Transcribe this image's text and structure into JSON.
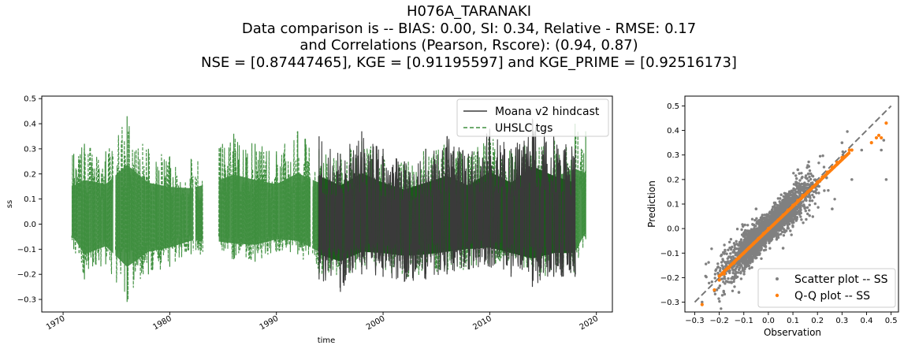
{
  "title": {
    "lines": [
      "H076A_TARANAKI",
      "Data comparison is   --   BIAS: 0.00, SI: 0.34, Relative - RMSE: 0.17",
      "and Correlations (Pearson, Rscore): (0.94, 0.87)",
      "NSE = [0.87447465], KGE = [0.91195597] and KGE_PRIME = [0.92516173]"
    ]
  },
  "colors": {
    "hindcast": "#3a3a3a",
    "hindcast_fill": "#1a5c1a",
    "tgs": "#3f8f3f",
    "tgs_fill": "#4f964f",
    "scatter": "#808080",
    "qq": "#ff7f0e",
    "identity": "#777777"
  },
  "chart_data": [
    {
      "type": "line",
      "xlabel": "time",
      "ylabel": "ss",
      "xlim": [
        1968.0,
        2021.5
      ],
      "ylim": [
        -0.35,
        0.51
      ],
      "x_ticks": [
        {
          "value": 1970,
          "label": "1970"
        },
        {
          "value": 1980,
          "label": "1980"
        },
        {
          "value": 1990,
          "label": "1990"
        },
        {
          "value": 2000,
          "label": "2000"
        },
        {
          "value": 2010,
          "label": "2010"
        },
        {
          "value": 2020,
          "label": "2020"
        }
      ],
      "y_ticks": [
        {
          "value": -0.3,
          "label": "−0.3"
        },
        {
          "value": -0.2,
          "label": "−0.2"
        },
        {
          "value": -0.1,
          "label": "−0.1"
        },
        {
          "value": 0.0,
          "label": "0.0"
        },
        {
          "value": 0.1,
          "label": "0.1"
        },
        {
          "value": 0.2,
          "label": "0.2"
        },
        {
          "value": 0.3,
          "label": "0.3"
        },
        {
          "value": 0.4,
          "label": "0.4"
        },
        {
          "value": 0.5,
          "label": "0.5"
        }
      ],
      "legend": {
        "position": "top-right"
      },
      "series": [
        {
          "name": "Moana v2 hindcast",
          "style": "solid",
          "coverage": [
            [
              1993.9,
              2018.0
            ]
          ],
          "envelope": {
            "x": [
              1994,
              1996,
              1998,
              2000,
              2002,
              2004,
              2006,
              2008,
              2010,
              2012,
              2014,
              2016,
              2018
            ],
            "max": [
              0.35,
              0.28,
              0.37,
              0.3,
              0.25,
              0.3,
              0.35,
              0.28,
              0.38,
              0.3,
              0.42,
              0.35,
              0.3
            ],
            "min": [
              -0.22,
              -0.27,
              -0.2,
              -0.21,
              -0.23,
              -0.22,
              -0.2,
              -0.18,
              -0.17,
              -0.21,
              -0.25,
              -0.21,
              -0.21
            ]
          }
        },
        {
          "name": "UHSLC tgs",
          "style": "dashed",
          "coverage": [
            [
              1970.8,
              1974.7
            ],
            [
              1974.9,
              1982.2
            ],
            [
              1982.4,
              1983.1
            ],
            [
              1984.6,
              1993.2
            ],
            [
              1993.4,
              2019.0
            ]
          ],
          "envelope": {
            "x": [
              1971,
              1972,
              1974,
              1976,
              1978,
              1980,
              1982,
              1984,
              1986,
              1988,
              1990,
              1992,
              1994,
              1996,
              1998,
              2000,
              2002,
              2004,
              2006,
              2008,
              2010,
              2012,
              2014,
              2016,
              2018,
              2019
            ],
            "max": [
              0.28,
              0.32,
              0.29,
              0.43,
              0.3,
              0.27,
              0.26,
              0.3,
              0.36,
              0.32,
              0.29,
              0.37,
              0.3,
              0.28,
              0.33,
              0.28,
              0.25,
              0.3,
              0.33,
              0.27,
              0.37,
              0.29,
              0.33,
              0.34,
              0.4,
              0.37
            ],
            "min": [
              -0.1,
              -0.22,
              -0.16,
              -0.31,
              -0.2,
              -0.17,
              -0.12,
              -0.12,
              -0.14,
              -0.15,
              -0.11,
              -0.12,
              -0.2,
              -0.22,
              -0.17,
              -0.18,
              -0.22,
              -0.2,
              -0.19,
              -0.18,
              -0.16,
              -0.18,
              -0.22,
              -0.2,
              -0.2,
              -0.06
            ]
          }
        }
      ]
    },
    {
      "type": "scatter",
      "xlabel": "Observation",
      "ylabel": "Prediction",
      "xlim": [
        -0.34,
        0.53
      ],
      "ylim": [
        -0.34,
        0.54
      ],
      "x_ticks": [
        {
          "value": -0.3,
          "label": "−0.3"
        },
        {
          "value": -0.2,
          "label": "−0.2"
        },
        {
          "value": -0.1,
          "label": "−0.1"
        },
        {
          "value": 0.0,
          "label": "0.0"
        },
        {
          "value": 0.1,
          "label": "0.1"
        },
        {
          "value": 0.2,
          "label": "0.2"
        },
        {
          "value": 0.3,
          "label": "0.3"
        },
        {
          "value": 0.4,
          "label": "0.4"
        },
        {
          "value": 0.5,
          "label": "0.5"
        }
      ],
      "y_ticks": [
        {
          "value": -0.3,
          "label": "−0.3"
        },
        {
          "value": -0.2,
          "label": "−0.2"
        },
        {
          "value": -0.1,
          "label": "−0.1"
        },
        {
          "value": 0.0,
          "label": "0.0"
        },
        {
          "value": 0.1,
          "label": "0.1"
        },
        {
          "value": 0.2,
          "label": "0.2"
        },
        {
          "value": 0.3,
          "label": "0.3"
        },
        {
          "value": 0.4,
          "label": "0.4"
        },
        {
          "value": 0.5,
          "label": "0.5"
        }
      ],
      "identity_line": {
        "from": [
          -0.3,
          -0.3
        ],
        "to": [
          0.5,
          0.5
        ],
        "style": "dashed"
      },
      "legend": {
        "position": "bottom-right"
      },
      "series": [
        {
          "name": "Scatter plot -- SS",
          "spread": 0.045,
          "points": [
            [
              -0.27,
              -0.3
            ],
            [
              -0.21,
              -0.25
            ],
            [
              -0.15,
              -0.22
            ],
            [
              0.46,
              0.32
            ],
            [
              0.48,
              0.2
            ],
            [
              0.47,
              0.36
            ],
            [
              0.42,
              0.35
            ],
            [
              0.38,
              0.32
            ],
            [
              0.3,
              0.35
            ],
            [
              -0.05,
              0.08
            ],
            [
              0.12,
              0.24
            ],
            [
              0.06,
              -0.08
            ],
            [
              -0.12,
              -0.26
            ],
            [
              0.26,
              0.08
            ],
            [
              0.34,
              0.2
            ]
          ]
        },
        {
          "name": "Q-Q plot -- SS",
          "points": [
            [
              -0.27,
              -0.31
            ],
            [
              -0.22,
              -0.25
            ],
            [
              -0.2,
              -0.21
            ],
            [
              -0.18,
              -0.185
            ],
            [
              -0.16,
              -0.16
            ],
            [
              -0.14,
              -0.14
            ],
            [
              -0.12,
              -0.12
            ],
            [
              -0.1,
              -0.1
            ],
            [
              -0.08,
              -0.08
            ],
            [
              -0.06,
              -0.06
            ],
            [
              -0.04,
              -0.04
            ],
            [
              -0.02,
              -0.02
            ],
            [
              0.0,
              0.0
            ],
            [
              0.02,
              0.015
            ],
            [
              0.04,
              0.035
            ],
            [
              0.06,
              0.055
            ],
            [
              0.08,
              0.075
            ],
            [
              0.1,
              0.095
            ],
            [
              0.12,
              0.115
            ],
            [
              0.14,
              0.135
            ],
            [
              0.16,
              0.15
            ],
            [
              0.18,
              0.17
            ],
            [
              0.2,
              0.19
            ],
            [
              0.22,
              0.21
            ],
            [
              0.24,
              0.23
            ],
            [
              0.26,
              0.25
            ],
            [
              0.28,
              0.27
            ],
            [
              0.3,
              0.29
            ],
            [
              0.32,
              0.3
            ],
            [
              0.33,
              0.32
            ],
            [
              0.34,
              0.32
            ],
            [
              0.42,
              0.35
            ],
            [
              0.44,
              0.37
            ],
            [
              0.45,
              0.38
            ],
            [
              0.46,
              0.37
            ],
            [
              0.48,
              0.43
            ]
          ]
        }
      ]
    }
  ]
}
